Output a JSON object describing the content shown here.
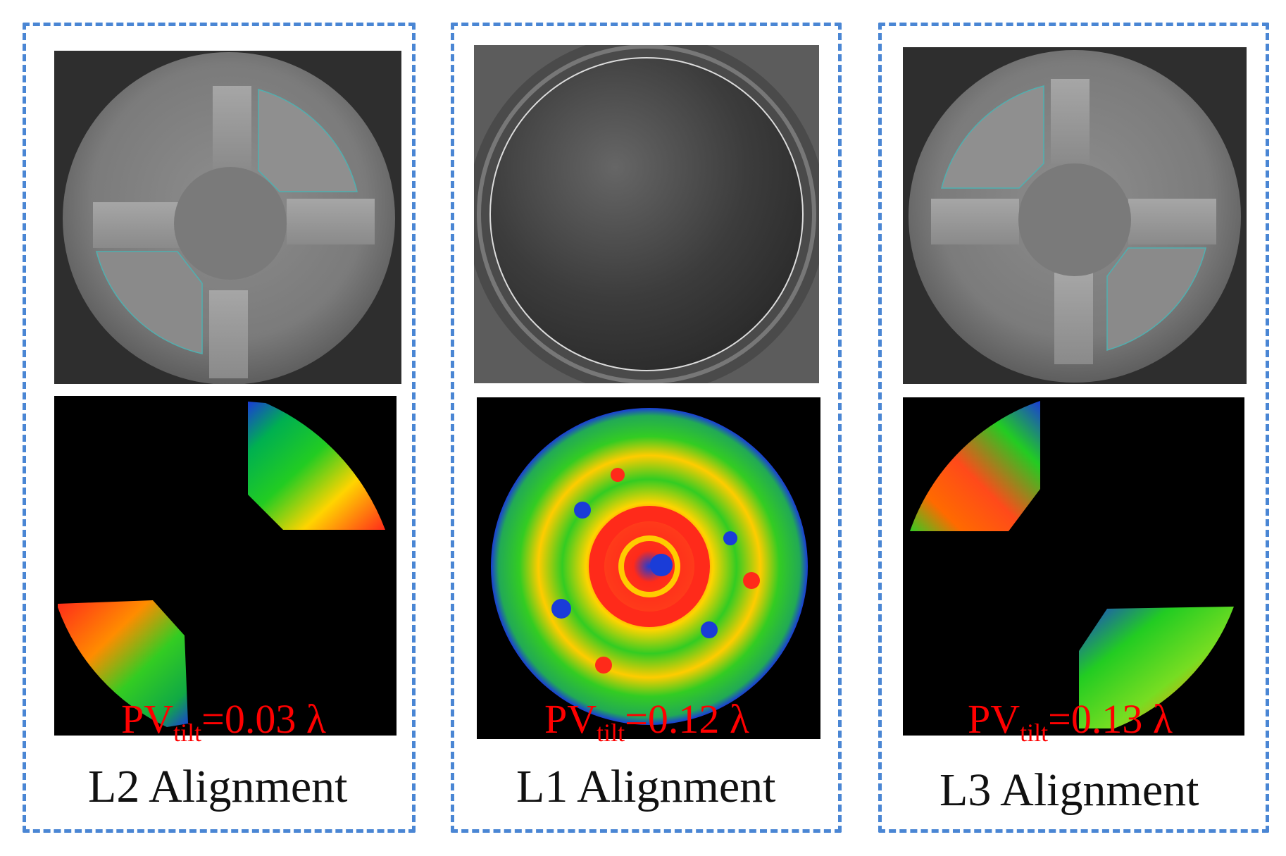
{
  "panels": [
    {
      "caption": "L2 Alignment",
      "pv_main": "PV",
      "pv_sub": "tilt",
      "pv_value": "=0.03 λ"
    },
    {
      "caption": "L1 Alignment",
      "pv_main": "PV",
      "pv_sub": "tilt",
      "pv_value": "=0.12 λ"
    },
    {
      "caption": "L3 Alignment",
      "pv_main": "PV",
      "pv_sub": "tilt",
      "pv_value": "=0.13 λ"
    }
  ],
  "colors": {
    "dash_border": "#4a86d4",
    "annotation_text": "#ff0000",
    "map_background": "#000000"
  }
}
